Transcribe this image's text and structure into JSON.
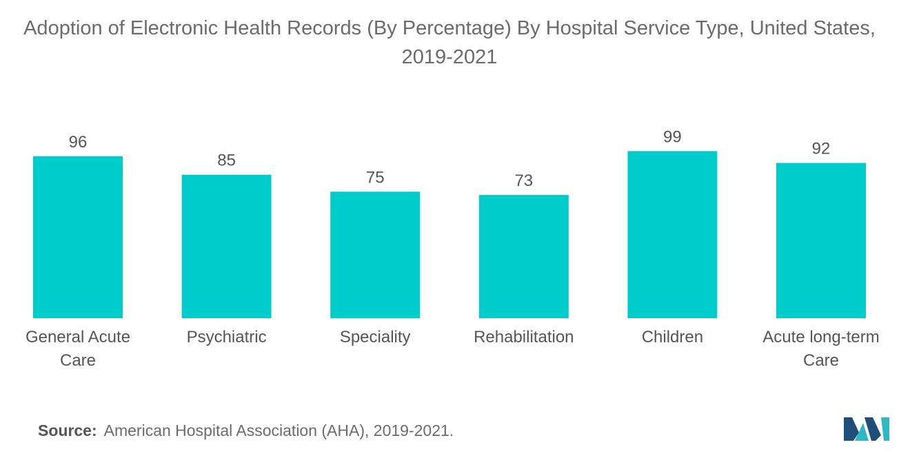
{
  "chart_data": {
    "type": "bar",
    "title": "Adoption of Electronic Health Records (By Percentage) By Hospital Service Type, United States, 2019-2021",
    "categories": [
      "General Acute Care",
      "Psychiatric",
      "Speciality",
      "Rehabilitation",
      "Children",
      "Acute long-term Care"
    ],
    "category_lines": [
      [
        "General Acute",
        "Care"
      ],
      [
        "Psychiatric"
      ],
      [
        "Speciality"
      ],
      [
        "Rehabilitation"
      ],
      [
        "Children"
      ],
      [
        "Acute long-term",
        "Care"
      ]
    ],
    "values": [
      96,
      85,
      75,
      73,
      99,
      92
    ],
    "xlabel": "",
    "ylabel": "",
    "ylim": [
      0,
      100
    ],
    "grid": false,
    "bar_color": "#00cccc"
  },
  "source": {
    "label": "Source:",
    "text": "American Hospital Association (AHA), 2019-2021."
  },
  "colors": {
    "bar": "#00cccc",
    "logo_dark": "#1f4e79",
    "logo_teal": "#2fb7c4"
  }
}
